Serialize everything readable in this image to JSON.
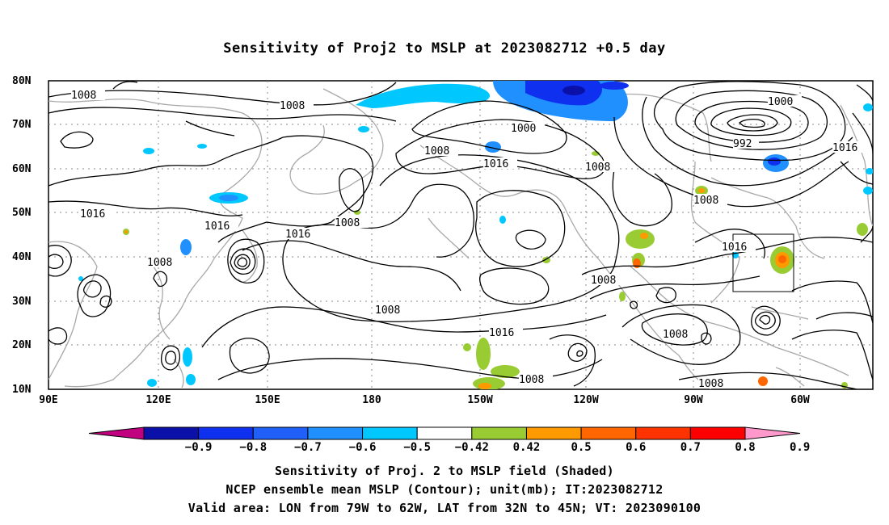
{
  "title": "Sensitivity of Proj2 to MSLP at 2023082712 +0.5 day",
  "lat_labels": [
    "80N",
    "70N",
    "60N",
    "50N",
    "40N",
    "30N",
    "20N",
    "10N"
  ],
  "lon_labels": [
    "90E",
    "120E",
    "150E",
    "180",
    "150W",
    "120W",
    "90W",
    "60W"
  ],
  "contour_labels": [
    "1008",
    "1008",
    "1000",
    "1000",
    "992",
    "1016",
    "1008",
    "1016",
    "1008",
    "1016",
    "1008",
    "1016",
    "1008",
    "1016",
    "1008",
    "1016",
    "1008",
    "1008",
    "1016",
    "1008",
    "1008",
    "1008"
  ],
  "colorbar": {
    "labels": [
      "-0.9",
      "-0.8",
      "-0.7",
      "-0.6",
      "-0.5",
      "-0.42",
      "0.42",
      "0.5",
      "0.6",
      "0.7",
      "0.8",
      "0.9"
    ],
    "colors": [
      "#c0007f",
      "#0a10a8",
      "#1030f0",
      "#2060f8",
      "#2090ff",
      "#00c8ff",
      "#ffffff",
      "#99cc33",
      "#ff9900",
      "#ff6600",
      "#ff3300",
      "#ff0000",
      "#ff99cc"
    ]
  },
  "valid_area": {
    "lon": [
      -79,
      -62
    ],
    "lat": [
      32,
      45
    ]
  },
  "captions": {
    "line1": "Sensitivity of Proj. 2 to MSLP field (Shaded)",
    "line2": "NCEP ensemble mean MSLP (Contour); unit(mb); IT:2023082712",
    "line3": "Valid area: LON from 79W to 62W, LAT from 32N to 45N; VT: 2023090100"
  }
}
